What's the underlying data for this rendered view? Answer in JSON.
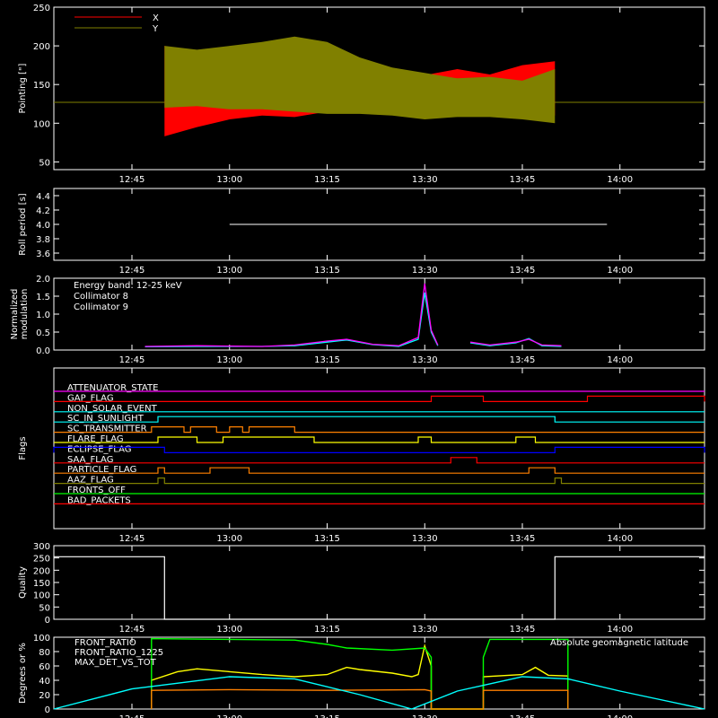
{
  "colors": {
    "background": "#000000",
    "axes": "#ffffff",
    "x_red": "#ff0000",
    "y_olive": "#808000",
    "cyan": "#00ffff",
    "magenta": "#ff00ff",
    "yellow": "#ffff00",
    "green": "#00ff00",
    "orange": "#ff8000",
    "blue": "#0000ff",
    "white": "#ffffff"
  },
  "time_ticks": [
    "12:45",
    "13:00",
    "13:15",
    "13:30",
    "13:45",
    "14:00"
  ],
  "chart_data": [
    {
      "type": "area",
      "ylabel": "Pointing [\"]",
      "ylim": [
        40,
        250
      ],
      "yticks": [
        50,
        100,
        150,
        200,
        250
      ],
      "xlim": [
        "12:33",
        "14:13"
      ],
      "legend_placement": "top-left",
      "series": [
        {
          "name": "X",
          "color": "#ff0000",
          "x": [
            "12:50",
            "12:55",
            "13:00",
            "13:05",
            "13:10",
            "13:15",
            "13:20",
            "13:25",
            "13:30",
            "13:35",
            "13:40",
            "13:45",
            "13:50"
          ],
          "upper": [
            200,
            185,
            170,
            162,
            160,
            150,
            140,
            140,
            162,
            170,
            163,
            175,
            180
          ],
          "lower": [
            83,
            95,
            105,
            110,
            108,
            115,
            125,
            130,
            118,
            115,
            120,
            115,
            110
          ]
        },
        {
          "name": "Y",
          "color": "#808000",
          "x": [
            "12:50",
            "12:55",
            "13:00",
            "13:05",
            "13:10",
            "13:15",
            "13:20",
            "13:25",
            "13:30",
            "13:35",
            "13:40",
            "13:45",
            "13:50"
          ],
          "upper": [
            200,
            195,
            200,
            205,
            212,
            205,
            185,
            172,
            165,
            158,
            160,
            155,
            170
          ],
          "lower": [
            120,
            122,
            118,
            118,
            115,
            112,
            112,
            110,
            105,
            108,
            108,
            105,
            100
          ]
        }
      ],
      "baseline": 127
    },
    {
      "type": "line",
      "ylabel": "Roll period [s]",
      "ylim": [
        3.5,
        4.5
      ],
      "yticks": [
        3.6,
        3.8,
        4.0,
        4.2,
        4.4
      ],
      "xlim": [
        "12:33",
        "14:13"
      ],
      "series": [
        {
          "name": "",
          "color": "#ffffff",
          "x": [
            "13:00",
            "13:58"
          ],
          "y": [
            4.0,
            4.0
          ]
        }
      ]
    },
    {
      "type": "line",
      "ylabel": "Normalized modulation",
      "ylim": [
        0,
        2.0
      ],
      "yticks": [
        0.0,
        0.5,
        1.0,
        1.5,
        2.0
      ],
      "xlim": [
        "12:33",
        "14:13"
      ],
      "annotation": "Energy band: 12-25 keV",
      "legend_placement": "top-left",
      "series": [
        {
          "name": "Collimator 8",
          "color": "#00ffff",
          "x": [
            "12:47",
            "12:55",
            "13:05",
            "13:10",
            "13:15",
            "13:18",
            "13:22",
            "13:26",
            "13:29",
            "13:30",
            "13:31",
            "13:32",
            "13:34",
            "13:37",
            "13:40",
            "13:44",
            "13:46",
            "13:48",
            "13:51"
          ],
          "y": [
            0.09,
            0.1,
            0.1,
            0.12,
            0.22,
            0.28,
            0.15,
            0.1,
            0.3,
            1.6,
            0.5,
            0.12,
            null,
            0.2,
            0.12,
            0.2,
            0.32,
            0.12,
            0.1
          ]
        },
        {
          "name": "Collimator 9",
          "color": "#ff00ff",
          "x": [
            "12:47",
            "12:55",
            "13:05",
            "13:10",
            "13:15",
            "13:18",
            "13:22",
            "13:26",
            "13:29",
            "13:30",
            "13:31",
            "13:32",
            "13:34",
            "13:37",
            "13:40",
            "13:44",
            "13:46",
            "13:48",
            "13:51"
          ],
          "y": [
            0.1,
            0.12,
            0.1,
            0.14,
            0.25,
            0.3,
            0.16,
            0.12,
            0.35,
            1.85,
            0.55,
            0.14,
            null,
            0.22,
            0.14,
            0.22,
            0.3,
            0.14,
            0.12
          ]
        }
      ]
    },
    {
      "type": "line",
      "ylabel": "Flags",
      "xlim": [
        "12:33",
        "14:13"
      ],
      "flags": [
        {
          "name": "ATTENUATOR_STATE",
          "color": "#ff00ff",
          "high": []
        },
        {
          "name": "GAP_FLAG",
          "color": "#ff0000",
          "high": [
            [
              "13:31",
              "13:39"
            ],
            [
              "13:55",
              "14:13"
            ]
          ]
        },
        {
          "name": "NON_SOLAR_EVENT",
          "color": "#00ffff",
          "high": []
        },
        {
          "name": "SC_IN_SUNLIGHT",
          "color": "#00ffff",
          "high": [
            [
              "12:49",
              "13:50"
            ]
          ]
        },
        {
          "name": "SC_TRANSMITTER",
          "color": "#ff8000",
          "high": [
            [
              "12:48",
              "12:53"
            ],
            [
              "12:54",
              "12:58"
            ],
            [
              "13:00",
              "13:02"
            ],
            [
              "13:03",
              "13:10"
            ]
          ]
        },
        {
          "name": "FLARE_FLAG",
          "color": "#ffff00",
          "high": [
            [
              "12:49",
              "12:55"
            ],
            [
              "12:59",
              "13:13"
            ],
            [
              "13:29",
              "13:31"
            ],
            [
              "13:44",
              "13:47"
            ]
          ]
        },
        {
          "name": "ECLIPSE_FLAG",
          "color": "#0000ff",
          "high": [
            [
              "12:33",
              "12:50"
            ],
            [
              "13:50",
              "14:13"
            ]
          ]
        },
        {
          "name": "SAA_FLAG",
          "color": "#ff0000",
          "high": [
            [
              "13:34",
              "13:38"
            ]
          ]
        },
        {
          "name": "PARTICLE_FLAG",
          "color": "#ff8000",
          "high": [
            [
              "12:49",
              "12:50"
            ],
            [
              "12:57",
              "13:03"
            ],
            [
              "13:46",
              "13:50"
            ]
          ]
        },
        {
          "name": "AAZ_FLAG",
          "color": "#808000",
          "high": [
            [
              "12:49",
              "12:50"
            ],
            [
              "13:50",
              "13:51"
            ]
          ]
        },
        {
          "name": "FRONTS_OFF",
          "color": "#00ff00",
          "high": []
        },
        {
          "name": "BAD_PACKETS",
          "color": "#ff0000",
          "high": []
        }
      ]
    },
    {
      "type": "line",
      "ylabel": "Quality",
      "ylim": [
        0,
        300
      ],
      "yticks": [
        0,
        50,
        100,
        150,
        200,
        250,
        300
      ],
      "xlim": [
        "12:33",
        "14:13"
      ],
      "series": [
        {
          "name": "",
          "color": "#ffffff",
          "x": [
            "12:33",
            "12:50",
            "12:50",
            "13:50",
            "13:50",
            "14:13"
          ],
          "y": [
            255,
            255,
            0,
            0,
            255,
            255
          ]
        }
      ]
    },
    {
      "type": "line",
      "ylabel": "Degrees or %",
      "ylim": [
        0,
        100
      ],
      "yticks": [
        0,
        20,
        40,
        60,
        80,
        100
      ],
      "xlim": [
        "12:33",
        "14:13"
      ],
      "legend_placement": "top-left",
      "series": [
        {
          "name": "FRONT_RATIO",
          "color": "#ffff00",
          "x": [
            "12:48",
            "12:48",
            "12:52",
            "12:55",
            "13:00",
            "13:05",
            "13:10",
            "13:15",
            "13:18",
            "13:20",
            "13:25",
            "13:28",
            "13:29",
            "13:30",
            "13:31",
            "13:31",
            "13:39",
            "13:39",
            "13:45",
            "13:47",
            "13:49",
            "13:52",
            "13:52"
          ],
          "y": [
            0,
            40,
            52,
            56,
            52,
            48,
            45,
            48,
            58,
            55,
            50,
            45,
            48,
            88,
            60,
            0,
            0,
            45,
            48,
            58,
            47,
            46,
            0
          ]
        },
        {
          "name": "FRONT_RATIO_1225",
          "color": "#00ff00",
          "x": [
            "12:48",
            "12:48",
            "13:00",
            "13:10",
            "13:15",
            "13:18",
            "13:25",
            "13:30",
            "13:31",
            "13:31",
            "13:39",
            "13:39",
            "13:40",
            "13:52",
            "13:52"
          ],
          "y": [
            0,
            98,
            97,
            96,
            90,
            85,
            82,
            85,
            72,
            0,
            0,
            72,
            97,
            97,
            0
          ]
        },
        {
          "name": "MAX_DET_VS_TOT",
          "color": "#ff8000",
          "x": [
            "12:48",
            "12:48",
            "13:00",
            "13:15",
            "13:30",
            "13:31",
            "13:31",
            "13:39",
            "13:39",
            "13:52",
            "13:52"
          ],
          "y": [
            0,
            26,
            27,
            26,
            27,
            25,
            0,
            0,
            26,
            26,
            0
          ]
        },
        {
          "name": "Absolute geomagnetic latitude",
          "color": "#00ffff",
          "x": [
            "12:33",
            "12:45",
            "13:00",
            "13:10",
            "13:20",
            "13:28",
            "13:35",
            "13:45",
            "13:52",
            "14:00",
            "14:13"
          ],
          "y": [
            0,
            28,
            45,
            42,
            20,
            0,
            25,
            45,
            42,
            25,
            0
          ]
        }
      ]
    }
  ]
}
